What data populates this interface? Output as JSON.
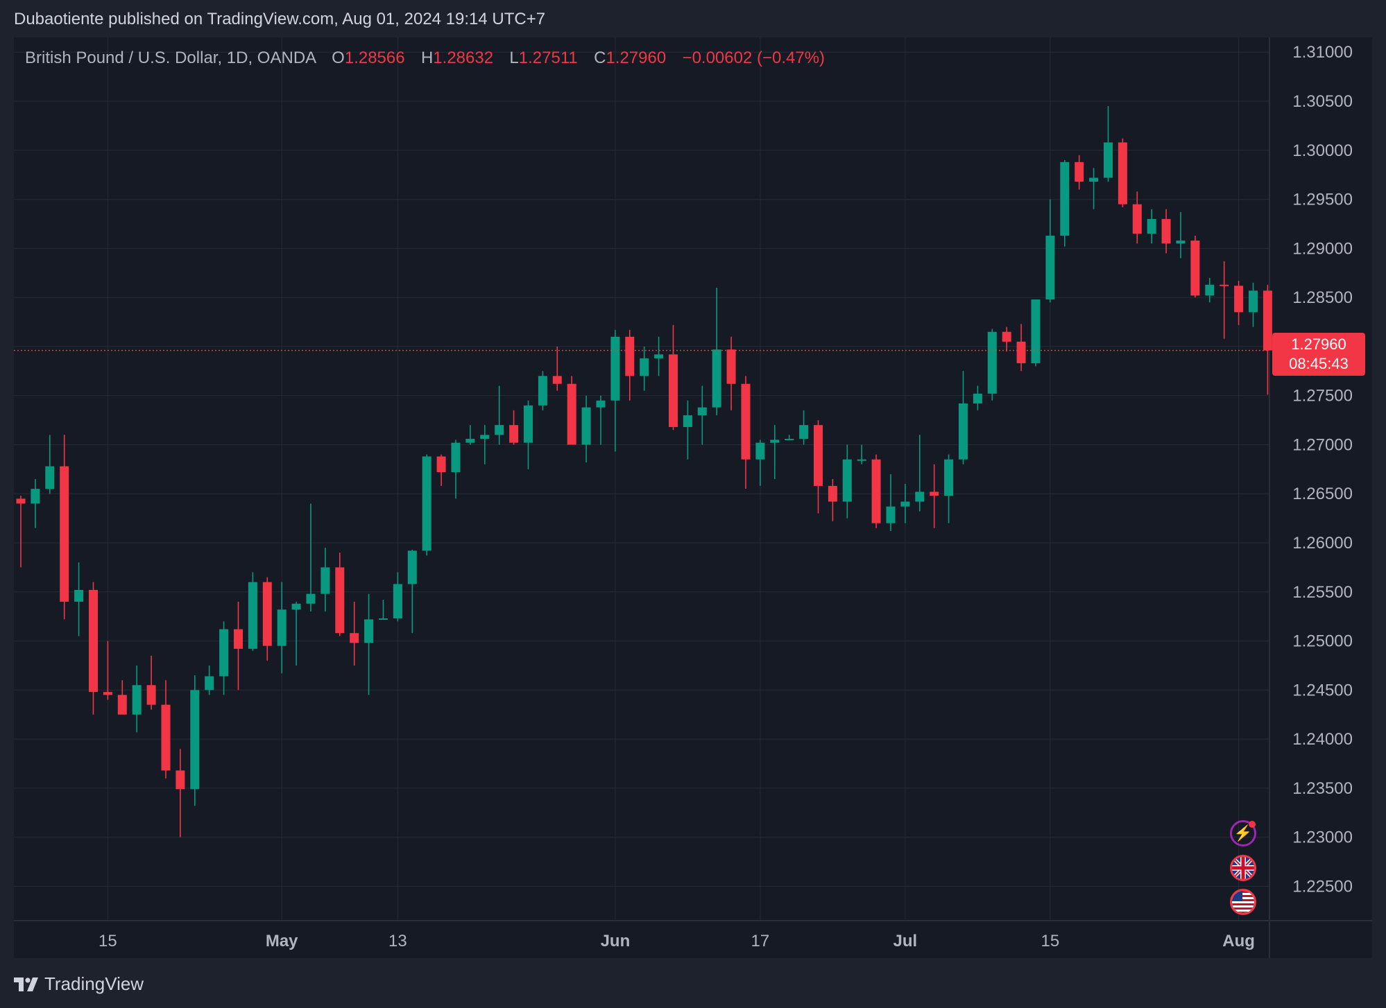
{
  "header": {
    "published_text": "Dubaotiente published on TradingView.com, Aug 01, 2024 19:14 UTC+7"
  },
  "legend": {
    "symbol": "British Pound / U.S. Dollar, 1D, OANDA",
    "o_label": "O",
    "o_value": "1.28566",
    "h_label": "H",
    "h_value": "1.28632",
    "l_label": "L",
    "l_value": "1.27511",
    "c_label": "C",
    "c_value": "1.27960",
    "change": "−0.00602 (−0.47%)"
  },
  "price_badge": {
    "price": "1.27960",
    "countdown": "08:45:43"
  },
  "footer": {
    "brand": "TradingView"
  },
  "colors": {
    "up": "#089981",
    "down": "#f23645",
    "grid": "#262a35",
    "background": "#161a25",
    "axis_text": "#b2b5be"
  },
  "events": {
    "icons": [
      "lightning-icon",
      "uk-flag-icon",
      "us-flag-icon"
    ]
  },
  "chart_data": {
    "type": "candlestick",
    "title": "British Pound / U.S. Dollar, 1D, OANDA",
    "ylim": [
      1.2215,
      1.3115
    ],
    "y_ticks": [
      "1.31000",
      "1.30500",
      "1.30000",
      "1.29500",
      "1.29000",
      "1.28500",
      "1.28000",
      "1.27500",
      "1.27000",
      "1.26500",
      "1.26000",
      "1.25500",
      "1.25000",
      "1.24500",
      "1.24000",
      "1.23500",
      "1.23000",
      "1.22500"
    ],
    "x_ticks": [
      {
        "label": "15",
        "index": 6
      },
      {
        "label": "May",
        "index": 18
      },
      {
        "label": "13",
        "index": 26
      },
      {
        "label": "Jun",
        "index": 41
      },
      {
        "label": "17",
        "index": 51
      },
      {
        "label": "Jul",
        "index": 61
      },
      {
        "label": "15",
        "index": 71
      },
      {
        "label": "Aug",
        "index": 84
      }
    ],
    "last_price": 1.2796,
    "candles": [
      [
        1.2645,
        1.2648,
        1.2575,
        1.264
      ],
      [
        1.264,
        1.2665,
        1.2615,
        1.2655
      ],
      [
        1.2655,
        1.271,
        1.265,
        1.2678
      ],
      [
        1.2678,
        1.271,
        1.2522,
        1.254
      ],
      [
        1.254,
        1.258,
        1.2505,
        1.2552
      ],
      [
        1.2552,
        1.256,
        1.2425,
        1.2448
      ],
      [
        1.2448,
        1.25,
        1.244,
        1.2445
      ],
      [
        1.2445,
        1.246,
        1.243,
        1.2425
      ],
      [
        1.2425,
        1.2475,
        1.2407,
        1.2455
      ],
      [
        1.2455,
        1.2485,
        1.243,
        1.2435
      ],
      [
        1.2435,
        1.246,
        1.236,
        1.2368
      ],
      [
        1.2368,
        1.239,
        1.23,
        1.2349
      ],
      [
        1.2349,
        1.2465,
        1.2332,
        1.245
      ],
      [
        1.245,
        1.2475,
        1.2445,
        1.2464
      ],
      [
        1.2464,
        1.252,
        1.2445,
        1.2512
      ],
      [
        1.2512,
        1.254,
        1.245,
        1.2492
      ],
      [
        1.2492,
        1.257,
        1.249,
        1.256
      ],
      [
        1.256,
        1.2565,
        1.248,
        1.2495
      ],
      [
        1.2495,
        1.256,
        1.2467,
        1.2532
      ],
      [
        1.2532,
        1.254,
        1.2475,
        1.2538
      ],
      [
        1.2538,
        1.264,
        1.253,
        1.2548
      ],
      [
        1.2548,
        1.2595,
        1.253,
        1.2575
      ],
      [
        1.2575,
        1.259,
        1.2505,
        1.2508
      ],
      [
        1.2508,
        1.254,
        1.2475,
        1.2498
      ],
      [
        1.2498,
        1.2548,
        1.2445,
        1.2522
      ],
      [
        1.2522,
        1.2542,
        1.2522,
        1.2523
      ],
      [
        1.2523,
        1.257,
        1.252,
        1.2558
      ],
      [
        1.2558,
        1.2593,
        1.2508,
        1.2592
      ],
      [
        1.2592,
        1.269,
        1.2587,
        1.2688
      ],
      [
        1.2688,
        1.269,
        1.2658,
        1.2672
      ],
      [
        1.2672,
        1.2705,
        1.2645,
        1.2702
      ],
      [
        1.2702,
        1.272,
        1.27,
        1.2706
      ],
      [
        1.2706,
        1.272,
        1.268,
        1.271
      ],
      [
        1.271,
        1.276,
        1.27,
        1.272
      ],
      [
        1.272,
        1.2735,
        1.27,
        1.2702
      ],
      [
        1.2702,
        1.2745,
        1.2675,
        1.274
      ],
      [
        1.274,
        1.2775,
        1.2735,
        1.277
      ],
      [
        1.277,
        1.28,
        1.2755,
        1.2762
      ],
      [
        1.2762,
        1.277,
        1.27,
        1.27
      ],
      [
        1.27,
        1.275,
        1.2682,
        1.2738
      ],
      [
        1.2738,
        1.275,
        1.27,
        1.2745
      ],
      [
        1.2745,
        1.2817,
        1.2693,
        1.281
      ],
      [
        1.281,
        1.2817,
        1.2745,
        1.277
      ],
      [
        1.277,
        1.28,
        1.2755,
        1.2788
      ],
      [
        1.2788,
        1.281,
        1.277,
        1.2792
      ],
      [
        1.2792,
        1.2822,
        1.2715,
        1.2718
      ],
      [
        1.2718,
        1.2745,
        1.2685,
        1.273
      ],
      [
        1.273,
        1.276,
        1.27,
        1.2738
      ],
      [
        1.2738,
        1.286,
        1.273,
        1.2797
      ],
      [
        1.2797,
        1.281,
        1.2735,
        1.2762
      ],
      [
        1.2762,
        1.277,
        1.2655,
        1.2685
      ],
      [
        1.2685,
        1.2705,
        1.2658,
        1.2702
      ],
      [
        1.2702,
        1.272,
        1.2665,
        1.2705
      ],
      [
        1.2705,
        1.271,
        1.2705,
        1.2706
      ],
      [
        1.2706,
        1.2735,
        1.27,
        1.272
      ],
      [
        1.272,
        1.2725,
        1.263,
        1.2658
      ],
      [
        1.2658,
        1.2665,
        1.2622,
        1.2642
      ],
      [
        1.2642,
        1.27,
        1.2625,
        1.2685
      ],
      [
        1.2685,
        1.27,
        1.268,
        1.2685
      ],
      [
        1.2685,
        1.269,
        1.2615,
        1.262
      ],
      [
        1.262,
        1.267,
        1.2612,
        1.2637
      ],
      [
        1.2637,
        1.266,
        1.262,
        1.2642
      ],
      [
        1.2642,
        1.271,
        1.2632,
        1.2652
      ],
      [
        1.2652,
        1.268,
        1.2615,
        1.2648
      ],
      [
        1.2648,
        1.269,
        1.262,
        1.2685
      ],
      [
        1.2685,
        1.2775,
        1.268,
        1.2742
      ],
      [
        1.2742,
        1.276,
        1.2735,
        1.2752
      ],
      [
        1.2752,
        1.2818,
        1.2745,
        1.2815
      ],
      [
        1.2815,
        1.282,
        1.2795,
        1.2805
      ],
      [
        1.2805,
        1.2823,
        1.2775,
        1.2783
      ],
      [
        1.2783,
        1.2848,
        1.278,
        1.2848
      ],
      [
        1.2848,
        1.295,
        1.2845,
        1.2913
      ],
      [
        1.2913,
        1.299,
        1.2902,
        1.2988
      ],
      [
        1.2988,
        1.2995,
        1.296,
        1.2968
      ],
      [
        1.2968,
        1.2982,
        1.294,
        1.2972
      ],
      [
        1.2972,
        1.3045,
        1.2968,
        1.3008
      ],
      [
        1.3008,
        1.3012,
        1.2942,
        1.2945
      ],
      [
        1.2945,
        1.2958,
        1.2905,
        1.2915
      ],
      [
        1.2915,
        1.294,
        1.2905,
        1.293
      ],
      [
        1.293,
        1.294,
        1.2895,
        1.2905
      ],
      [
        1.2905,
        1.2937,
        1.289,
        1.2908
      ],
      [
        1.2908,
        1.2913,
        1.285,
        1.2852
      ],
      [
        1.2852,
        1.287,
        1.2845,
        1.2863
      ],
      [
        1.2863,
        1.2887,
        1.2808,
        1.2862
      ],
      [
        1.2862,
        1.2867,
        1.2822,
        1.2835
      ],
      [
        1.2835,
        1.2865,
        1.282,
        1.2857
      ],
      [
        1.2857,
        1.2863,
        1.2751,
        1.2796
      ]
    ]
  }
}
